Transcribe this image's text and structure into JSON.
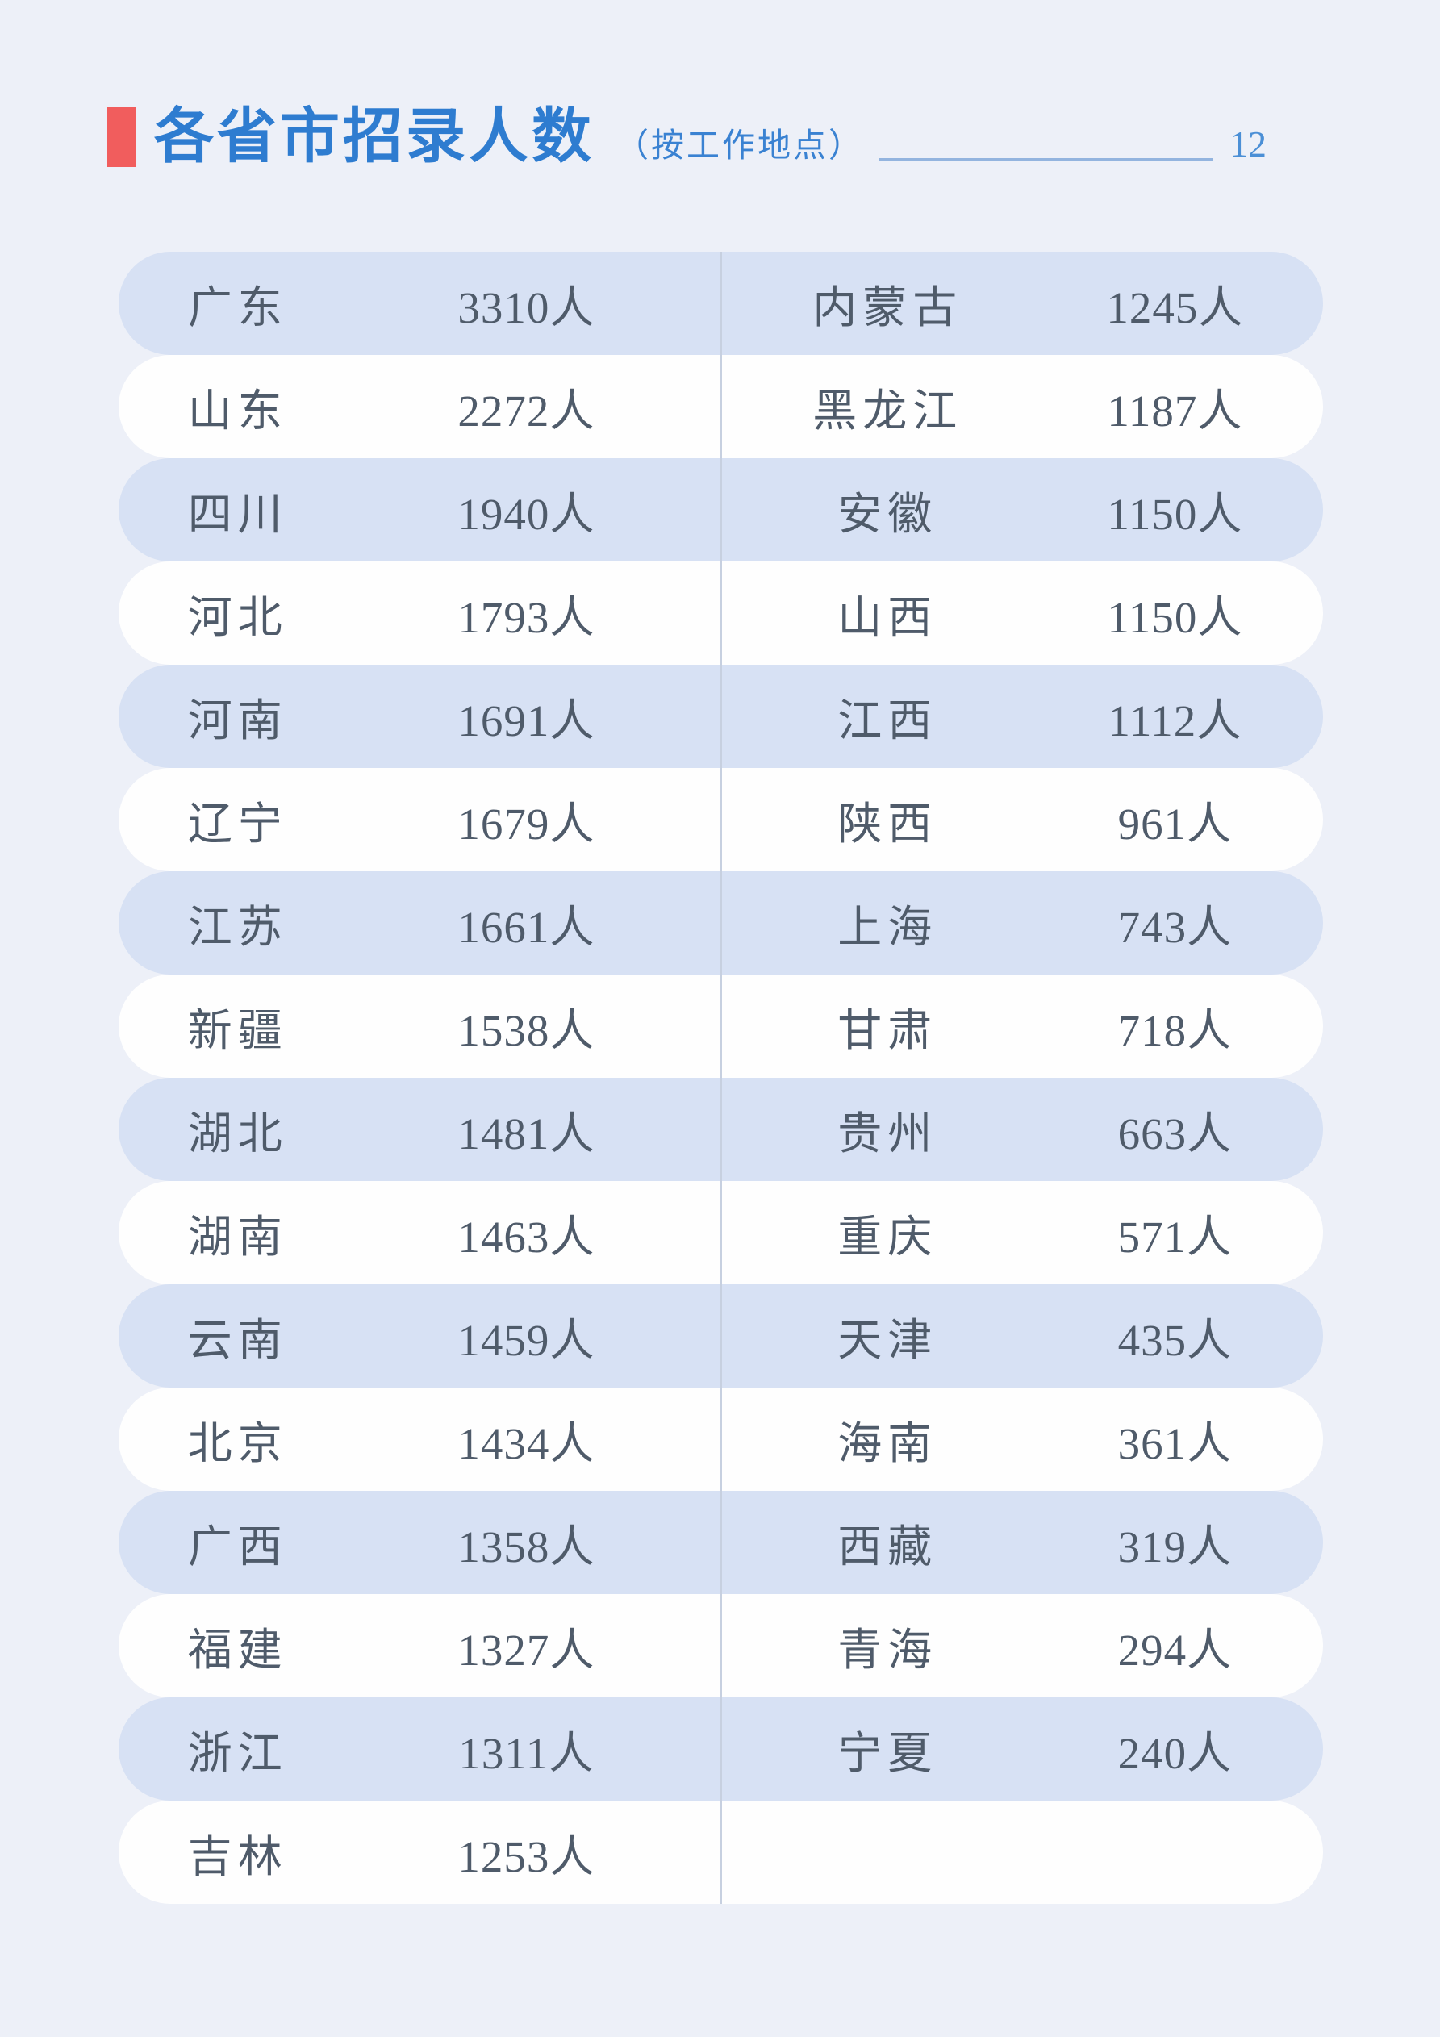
{
  "header": {
    "title": "各省市招录人数",
    "subtitle": "（按工作地点）",
    "page_number": "12"
  },
  "table": {
    "rows": [
      {
        "left_province": "广东",
        "left_count": "3310人",
        "right_province": "内蒙古",
        "right_count": "1245人"
      },
      {
        "left_province": "山东",
        "left_count": "2272人",
        "right_province": "黑龙江",
        "right_count": "1187人"
      },
      {
        "left_province": "四川",
        "left_count": "1940人",
        "right_province": "安徽",
        "right_count": "1150人"
      },
      {
        "left_province": "河北",
        "left_count": "1793人",
        "right_province": "山西",
        "right_count": "1150人"
      },
      {
        "left_province": "河南",
        "left_count": "1691人",
        "right_province": "江西",
        "right_count": "1112人"
      },
      {
        "left_province": "辽宁",
        "left_count": "1679人",
        "right_province": "陕西",
        "right_count": "961人"
      },
      {
        "left_province": "江苏",
        "left_count": "1661人",
        "right_province": "上海",
        "right_count": "743人"
      },
      {
        "left_province": "新疆",
        "left_count": "1538人",
        "right_province": "甘肃",
        "right_count": "718人"
      },
      {
        "left_province": "湖北",
        "left_count": "1481人",
        "right_province": "贵州",
        "right_count": "663人"
      },
      {
        "left_province": "湖南",
        "left_count": "1463人",
        "right_province": "重庆",
        "right_count": "571人"
      },
      {
        "left_province": "云南",
        "left_count": "1459人",
        "right_province": "天津",
        "right_count": "435人"
      },
      {
        "left_province": "北京",
        "left_count": "1434人",
        "right_province": "海南",
        "right_count": "361人"
      },
      {
        "left_province": "广西",
        "left_count": "1358人",
        "right_province": "西藏",
        "right_count": "319人"
      },
      {
        "left_province": "福建",
        "left_count": "1327人",
        "right_province": "青海",
        "right_count": "294人"
      },
      {
        "left_province": "浙江",
        "left_count": "1311人",
        "right_province": "宁夏",
        "right_count": "240人"
      },
      {
        "left_province": "吉林",
        "left_count": "1253人",
        "right_province": "",
        "right_count": ""
      }
    ]
  },
  "colors": {
    "page_bg": "#edf0f8",
    "accent": "#f15d5d",
    "title": "#2e7cd0",
    "subtitle": "#3a82d2",
    "underline": "#93b4df",
    "page_number": "#4b8fd6",
    "row_blue": "#d7e1f4",
    "row_white": "#fefefe",
    "row_text": "#4f5b6a",
    "divider": "#c7d0e0"
  }
}
